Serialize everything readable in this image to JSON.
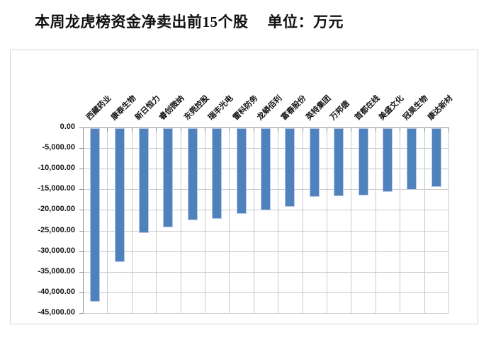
{
  "chart_data": {
    "type": "bar",
    "title": "本周龙虎榜资金净卖出前15个股",
    "unit_label": "单位：万元",
    "categories": [
      "西藏药业",
      "康泰生物",
      "新日恒力",
      "睿创微纳",
      "东莞控股",
      "瑞丰光电",
      "雷科防务",
      "龙蟒佰利",
      "富春股份",
      "英特集团",
      "万邦德",
      "首都在线",
      "美盛文化",
      "冠昊生物",
      "康达新材"
    ],
    "values": [
      -42000,
      -32400,
      -25400,
      -24100,
      -22400,
      -21900,
      -20700,
      -20000,
      -19000,
      -16600,
      -16500,
      -16400,
      -15400,
      -14900,
      -14200
    ],
    "xlabel": "",
    "ylabel": "",
    "ylim": [
      -45000,
      0
    ],
    "ytick_step": -5000,
    "ytick_labels": [
      "0.00",
      "-5,000.00",
      "-10,000.00",
      "-15,000.00",
      "-20,000.00",
      "-25,000.00",
      "-30,000.00",
      "-35,000.00",
      "-40,000.00",
      "-45,000.00"
    ],
    "grid": {
      "horizontal": true,
      "vertical": true
    },
    "legend_position": "none",
    "category_label_rotation_deg": 45,
    "colors": {
      "bar": "#4f81bd",
      "bar_edge": "#b7c9e6",
      "gridline": "#c9c9c9",
      "axis": "#8e8e8e",
      "chart_border": "#d5d5d5",
      "text": "#141414",
      "background": "#ffffff"
    }
  }
}
